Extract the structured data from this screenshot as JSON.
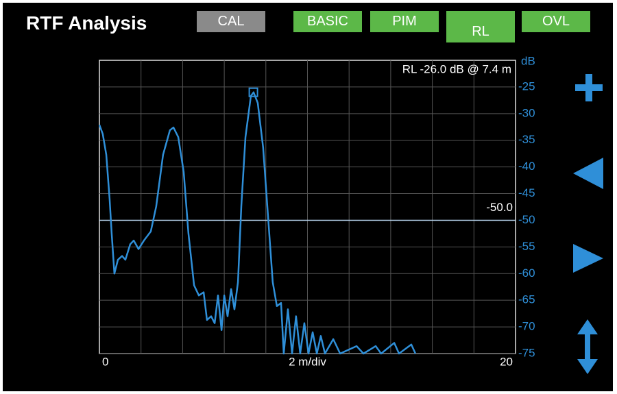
{
  "header": {
    "title": "RTF Analysis",
    "buttons": [
      "CAL",
      "BASIC",
      "PIM",
      "RL",
      "OVL"
    ]
  },
  "chart_data": {
    "type": "line",
    "annotation": "RL -26.0 dB @ 7.4 m",
    "y_unit": "dB",
    "x_label": "2 m/div",
    "xlim": [
      0,
      20
    ],
    "xticks": [
      0,
      20
    ],
    "xgrid": [
      2,
      4,
      6,
      8,
      10,
      12,
      14,
      16,
      18
    ],
    "ylim": [
      -75,
      -20
    ],
    "yticks": [
      -25,
      -30,
      -35,
      -40,
      -45,
      -50,
      -55,
      -60,
      -65,
      -70,
      -75
    ],
    "grid": true,
    "threshold": {
      "value": -50,
      "label": "-50.0"
    },
    "marker": {
      "x": 7.4,
      "y": -26
    },
    "x": [
      0,
      0.16,
      0.33,
      0.49,
      0.59,
      0.72,
      0.89,
      1.09,
      1.25,
      1.48,
      1.65,
      1.88,
      2.14,
      2.47,
      2.73,
      3.06,
      3.39,
      3.56,
      3.79,
      4.05,
      4.28,
      4.55,
      4.78,
      5.01,
      5.17,
      5.37,
      5.54,
      5.7,
      5.87,
      6.0,
      6.16,
      6.33,
      6.49,
      6.66,
      6.82,
      7.02,
      7.28,
      7.41,
      7.61,
      7.87,
      8.14,
      8.33,
      8.53,
      8.73,
      8.86,
      9.06,
      9.26,
      9.45,
      9.65,
      9.85,
      10.05,
      10.25,
      10.45,
      10.64,
      10.84,
      11.24,
      11.57,
      12.36,
      12.69,
      13.28,
      13.54,
      14.17,
      14.4,
      14.99,
      15.19
    ],
    "series": [
      {
        "color": "#2f8fd8",
        "values": [
          -32.1,
          -33.8,
          -37.7,
          -46,
          -52.5,
          -60,
          -57.4,
          -56.7,
          -57.4,
          -54.5,
          -53.8,
          -55.4,
          -53.8,
          -52.1,
          -47.4,
          -37.7,
          -33.1,
          -32.6,
          -34.4,
          -40.9,
          -52.5,
          -62.2,
          -64.1,
          -63.5,
          -68.7,
          -68,
          -69.3,
          -64.1,
          -70.6,
          -64.1,
          -68,
          -62.9,
          -66.7,
          -61.6,
          -47.4,
          -34.4,
          -26.7,
          -26,
          -28,
          -36.4,
          -51.2,
          -61.6,
          -66.1,
          -65.5,
          -75,
          -66.7,
          -75,
          -68,
          -75,
          -69.3,
          -75,
          -71,
          -75,
          -71.7,
          -75,
          -72.3,
          -75,
          -73.6,
          -75,
          -73.6,
          -75,
          -73,
          -75,
          -73.3,
          -75
        ]
      }
    ]
  }
}
